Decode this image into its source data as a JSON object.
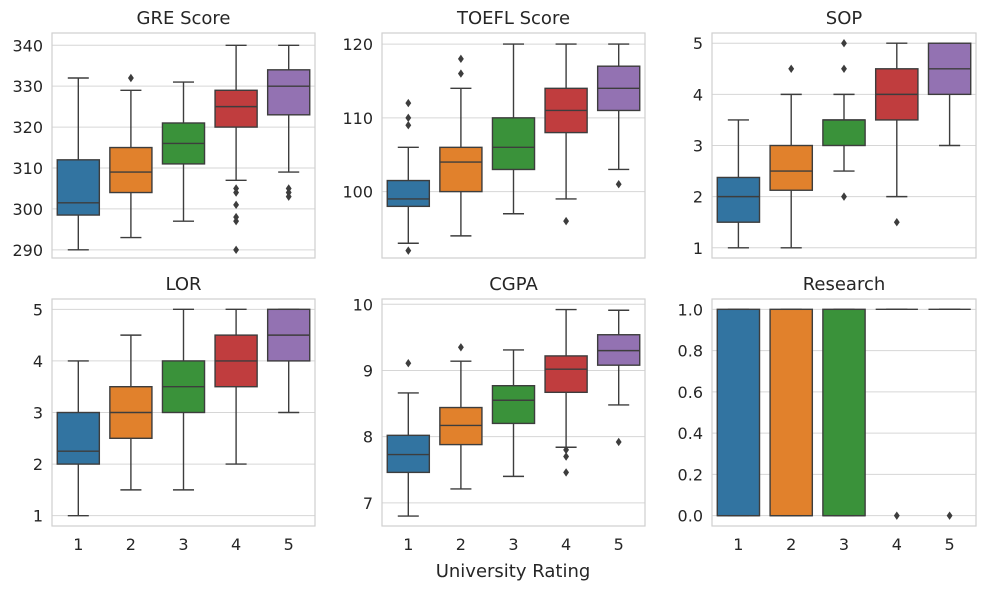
{
  "figure": {
    "xlabel": "University Rating"
  },
  "colors": {
    "1": "#3274a1",
    "2": "#e1812c",
    "3": "#3a923a",
    "4": "#c03d3e",
    "5": "#9372b2"
  },
  "chart_data": [
    {
      "type": "box",
      "title": "GRE Score",
      "categories": [
        "1",
        "2",
        "3",
        "4",
        "5"
      ],
      "show_xticks": false,
      "ylim": [
        288,
        343
      ],
      "yticks": [
        290,
        300,
        310,
        320,
        330,
        340
      ],
      "grid": true,
      "boxes": [
        {
          "q1": 298.5,
          "median": 301.5,
          "q3": 312,
          "whislo": 290,
          "whishi": 332,
          "fliers": []
        },
        {
          "q1": 304,
          "median": 309,
          "q3": 315,
          "whislo": 293,
          "whishi": 329,
          "fliers": [
            332
          ]
        },
        {
          "q1": 311,
          "median": 316,
          "q3": 321,
          "whislo": 297,
          "whishi": 331,
          "fliers": []
        },
        {
          "q1": 320,
          "median": 325,
          "q3": 329,
          "whislo": 307,
          "whishi": 340,
          "fliers": [
            305,
            304,
            301,
            298,
            297,
            290
          ]
        },
        {
          "q1": 323,
          "median": 330,
          "q3": 334,
          "whislo": 309,
          "whishi": 340,
          "fliers": [
            305,
            304,
            303
          ]
        }
      ]
    },
    {
      "type": "box",
      "title": "TOEFL Score",
      "categories": [
        "1",
        "2",
        "3",
        "4",
        "5"
      ],
      "show_xticks": false,
      "ylim": [
        91,
        121.5
      ],
      "yticks": [
        100,
        110,
        120
      ],
      "grid": true,
      "boxes": [
        {
          "q1": 98,
          "median": 99,
          "q3": 101.5,
          "whislo": 93,
          "whishi": 106,
          "fliers": [
            112,
            110,
            109,
            92
          ]
        },
        {
          "q1": 100,
          "median": 104,
          "q3": 106,
          "whislo": 94,
          "whishi": 114,
          "fliers": [
            118,
            116
          ]
        },
        {
          "q1": 103,
          "median": 106,
          "q3": 110,
          "whislo": 97,
          "whishi": 120,
          "fliers": []
        },
        {
          "q1": 108,
          "median": 111,
          "q3": 114,
          "whislo": 99,
          "whishi": 120,
          "fliers": [
            96
          ]
        },
        {
          "q1": 111,
          "median": 114,
          "q3": 117,
          "whislo": 103,
          "whishi": 120,
          "fliers": [
            101
          ]
        }
      ]
    },
    {
      "type": "box",
      "title": "SOP",
      "categories": [
        "1",
        "2",
        "3",
        "4",
        "5"
      ],
      "show_xticks": false,
      "ylim": [
        0.8,
        5.2
      ],
      "yticks": [
        1,
        2,
        3,
        4,
        5
      ],
      "grid": true,
      "boxes": [
        {
          "q1": 1.5,
          "median": 2,
          "q3": 2.375,
          "whislo": 1,
          "whishi": 3.5,
          "fliers": []
        },
        {
          "q1": 2.125,
          "median": 2.5,
          "q3": 3,
          "whislo": 1,
          "whishi": 4,
          "fliers": [
            4.5
          ]
        },
        {
          "q1": 3,
          "median": 3.5,
          "q3": 3.5,
          "whislo": 2.5,
          "whishi": 4,
          "fliers": [
            5,
            4.5,
            2
          ]
        },
        {
          "q1": 3.5,
          "median": 4,
          "q3": 4.5,
          "whislo": 2,
          "whishi": 5,
          "fliers": [
            1.5
          ]
        },
        {
          "q1": 4,
          "median": 4.5,
          "q3": 5,
          "whislo": 3,
          "whishi": 5,
          "fliers": []
        }
      ]
    },
    {
      "type": "box",
      "title": "LOR",
      "categories": [
        "1",
        "2",
        "3",
        "4",
        "5"
      ],
      "show_xticks": true,
      "ylim": [
        0.8,
        5.2
      ],
      "yticks": [
        1,
        2,
        3,
        4,
        5
      ],
      "grid": true,
      "boxes": [
        {
          "q1": 2,
          "median": 2.25,
          "q3": 3,
          "whislo": 1,
          "whishi": 4,
          "fliers": []
        },
        {
          "q1": 2.5,
          "median": 3,
          "q3": 3.5,
          "whislo": 1.5,
          "whishi": 4.5,
          "fliers": []
        },
        {
          "q1": 3,
          "median": 3.5,
          "q3": 4,
          "whislo": 1.5,
          "whishi": 5,
          "fliers": []
        },
        {
          "q1": 3.5,
          "median": 4,
          "q3": 4.5,
          "whislo": 2,
          "whishi": 5,
          "fliers": []
        },
        {
          "q1": 4,
          "median": 4.5,
          "q3": 5,
          "whislo": 3,
          "whishi": 5,
          "fliers": []
        }
      ]
    },
    {
      "type": "box",
      "title": "CGPA",
      "categories": [
        "1",
        "2",
        "3",
        "4",
        "5"
      ],
      "show_xticks": true,
      "ylim": [
        6.65,
        10.08
      ],
      "yticks": [
        7,
        8,
        9,
        10
      ],
      "grid": true,
      "boxes": [
        {
          "q1": 7.46,
          "median": 7.73,
          "q3": 8.02,
          "whislo": 6.8,
          "whishi": 8.66,
          "fliers": [
            9.11
          ]
        },
        {
          "q1": 7.88,
          "median": 8.17,
          "q3": 8.44,
          "whislo": 7.21,
          "whishi": 9.14,
          "fliers": [
            9.35
          ]
        },
        {
          "q1": 8.2,
          "median": 8.55,
          "q3": 8.77,
          "whislo": 7.4,
          "whishi": 9.31,
          "fliers": []
        },
        {
          "q1": 8.67,
          "median": 9.02,
          "q3": 9.22,
          "whislo": 7.84,
          "whishi": 9.92,
          "fliers": [
            7.8,
            7.7,
            7.46
          ]
        },
        {
          "q1": 9.08,
          "median": 9.3,
          "q3": 9.54,
          "whislo": 8.48,
          "whishi": 9.91,
          "fliers": [
            7.92
          ]
        }
      ]
    },
    {
      "type": "box",
      "title": "Research",
      "categories": [
        "1",
        "2",
        "3",
        "4",
        "5"
      ],
      "show_xticks": true,
      "ylim": [
        -0.05,
        1.05
      ],
      "yticks": [
        0.0,
        0.2,
        0.4,
        0.6,
        0.8,
        1.0
      ],
      "ytick_labels": [
        "0.0",
        "0.2",
        "0.4",
        "0.6",
        "0.8",
        "1.0"
      ],
      "grid": true,
      "boxes": [
        {
          "q1": 0,
          "median": 0,
          "q3": 1,
          "whislo": 0,
          "whishi": 1,
          "fliers": []
        },
        {
          "q1": 0,
          "median": 0,
          "q3": 1,
          "whislo": 0,
          "whishi": 1,
          "fliers": []
        },
        {
          "q1": 0,
          "median": 0,
          "q3": 1,
          "whislo": 0,
          "whishi": 1,
          "fliers": []
        },
        {
          "q1": 1,
          "median": 1,
          "q3": 1,
          "whislo": 1,
          "whishi": 1,
          "fliers": [
            0
          ]
        },
        {
          "q1": 1,
          "median": 1,
          "q3": 1,
          "whislo": 1,
          "whishi": 1,
          "fliers": [
            0
          ]
        }
      ]
    }
  ]
}
